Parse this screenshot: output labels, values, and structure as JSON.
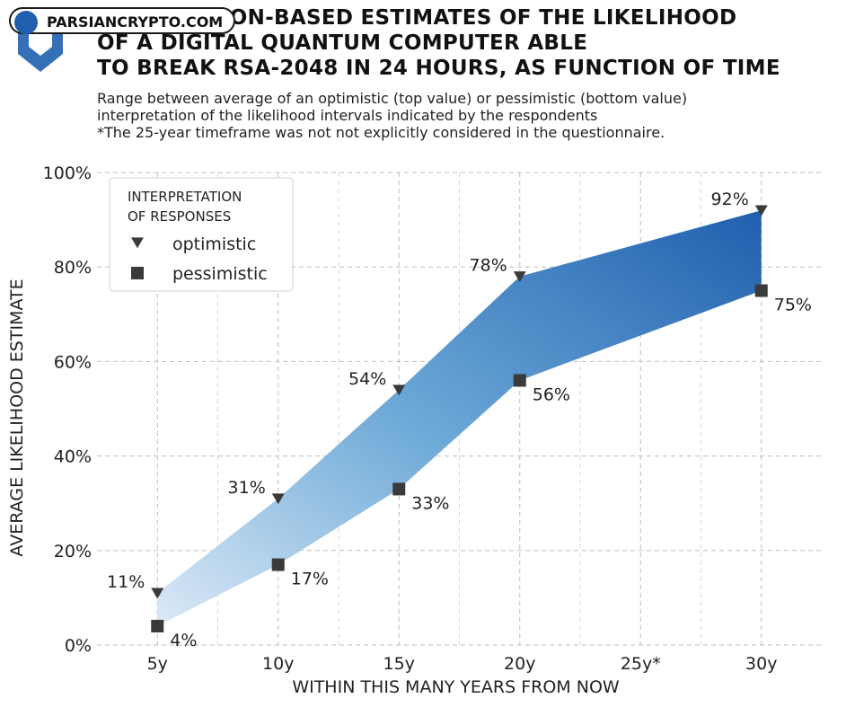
{
  "watermark": "PARSIANCRYPTO.COM",
  "title_lines": [
    "2022 OPINION-BASED ESTIMATES OF THE LIKELIHOOD",
    "OF A DIGITAL QUANTUM COMPUTER ABLE",
    "TO BREAK RSA-2048 IN 24 HOURS, AS FUNCTION OF TIME"
  ],
  "subtitle_lines": [
    "Range between average of an optimistic (top value) or pessimistic (bottom value)",
    "interpretation of the likelihood intervals indicated by the respondents",
    "*The 25-year timeframe was not not explicitly considered in the questionnaire."
  ],
  "colors": {
    "band_dark": "#1f5fae",
    "band_light": "#dce9f6",
    "marker": "#3a3a3a",
    "grid": "#bdbdbd"
  },
  "chart_data": {
    "type": "area",
    "xlabel": "WITHIN THIS MANY YEARS FROM NOW",
    "ylabel": "AVERAGE LIKELIHOOD ESTIMATE",
    "categories": [
      "5y",
      "10y",
      "15y",
      "20y",
      "25y*",
      "30y"
    ],
    "x": [
      5,
      10,
      15,
      20,
      25,
      30
    ],
    "ylim": [
      0,
      100
    ],
    "yticks": [
      "0%",
      "20%",
      "40%",
      "60%",
      "80%",
      "100%"
    ],
    "grid": true,
    "legend": {
      "title_lines": [
        "INTERPRETATION",
        "OF RESPONSES"
      ],
      "placement": "top-left"
    },
    "series": [
      {
        "name": "optimistic",
        "marker": "triangle-down",
        "x": [
          5,
          10,
          15,
          20,
          30
        ],
        "values": [
          11,
          31,
          54,
          78,
          92
        ],
        "labels": [
          "11%",
          "31%",
          "54%",
          "78%",
          "92%"
        ]
      },
      {
        "name": "pessimistic",
        "marker": "square",
        "x": [
          5,
          10,
          15,
          20,
          30
        ],
        "values": [
          4,
          17,
          33,
          56,
          75
        ],
        "labels": [
          "4%",
          "17%",
          "33%",
          "56%",
          "75%"
        ]
      }
    ]
  }
}
